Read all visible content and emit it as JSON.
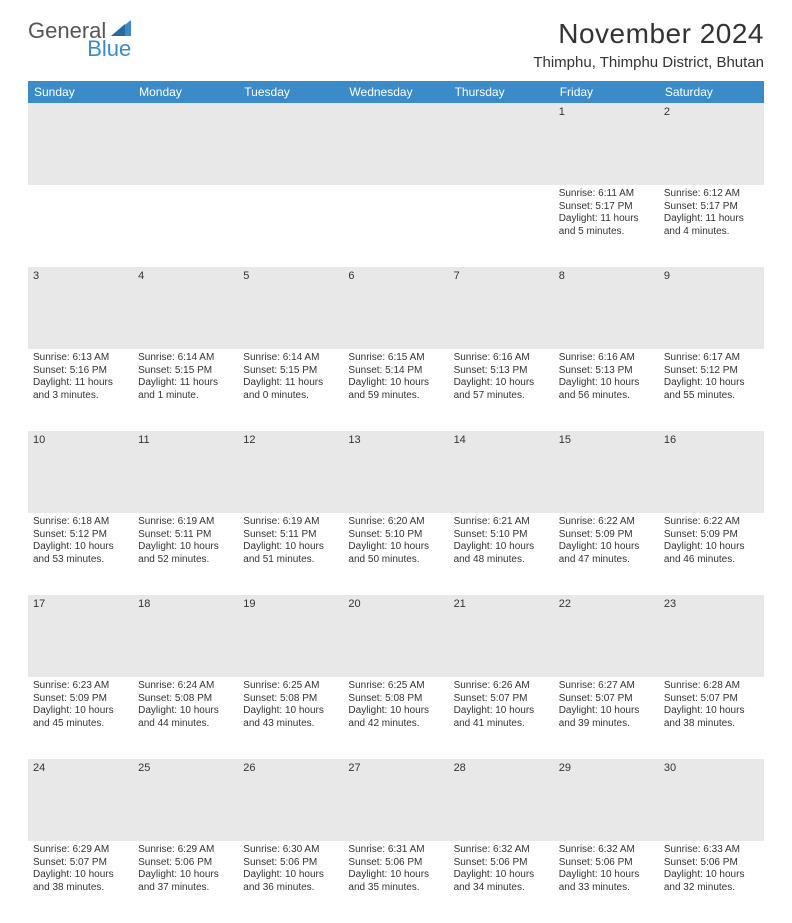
{
  "brand": {
    "part1": "General",
    "part2": "Blue"
  },
  "title": "November 2024",
  "location": "Thimphu, Thimphu District, Bhutan",
  "colors": {
    "header_bg": "#3b8bc8",
    "header_text": "#ffffff",
    "body_bg": "#ffffff",
    "text": "#333333",
    "daynum_bg": "#e8e8e8",
    "rule": "#2f6fa0"
  },
  "fonts": {
    "title_size": 28,
    "location_size": 15,
    "header_size": 12,
    "cell_size": 10,
    "daynum_size": 11
  },
  "columns": [
    "Sunday",
    "Monday",
    "Tuesday",
    "Wednesday",
    "Thursday",
    "Friday",
    "Saturday"
  ],
  "weeks": [
    [
      null,
      null,
      null,
      null,
      null,
      {
        "n": "1",
        "sr": "Sunrise: 6:11 AM",
        "ss": "Sunset: 5:17 PM",
        "d1": "Daylight: 11 hours",
        "d2": "and 5 minutes."
      },
      {
        "n": "2",
        "sr": "Sunrise: 6:12 AM",
        "ss": "Sunset: 5:17 PM",
        "d1": "Daylight: 11 hours",
        "d2": "and 4 minutes."
      }
    ],
    [
      {
        "n": "3",
        "sr": "Sunrise: 6:13 AM",
        "ss": "Sunset: 5:16 PM",
        "d1": "Daylight: 11 hours",
        "d2": "and 3 minutes."
      },
      {
        "n": "4",
        "sr": "Sunrise: 6:14 AM",
        "ss": "Sunset: 5:15 PM",
        "d1": "Daylight: 11 hours",
        "d2": "and 1 minute."
      },
      {
        "n": "5",
        "sr": "Sunrise: 6:14 AM",
        "ss": "Sunset: 5:15 PM",
        "d1": "Daylight: 11 hours",
        "d2": "and 0 minutes."
      },
      {
        "n": "6",
        "sr": "Sunrise: 6:15 AM",
        "ss": "Sunset: 5:14 PM",
        "d1": "Daylight: 10 hours",
        "d2": "and 59 minutes."
      },
      {
        "n": "7",
        "sr": "Sunrise: 6:16 AM",
        "ss": "Sunset: 5:13 PM",
        "d1": "Daylight: 10 hours",
        "d2": "and 57 minutes."
      },
      {
        "n": "8",
        "sr": "Sunrise: 6:16 AM",
        "ss": "Sunset: 5:13 PM",
        "d1": "Daylight: 10 hours",
        "d2": "and 56 minutes."
      },
      {
        "n": "9",
        "sr": "Sunrise: 6:17 AM",
        "ss": "Sunset: 5:12 PM",
        "d1": "Daylight: 10 hours",
        "d2": "and 55 minutes."
      }
    ],
    [
      {
        "n": "10",
        "sr": "Sunrise: 6:18 AM",
        "ss": "Sunset: 5:12 PM",
        "d1": "Daylight: 10 hours",
        "d2": "and 53 minutes."
      },
      {
        "n": "11",
        "sr": "Sunrise: 6:19 AM",
        "ss": "Sunset: 5:11 PM",
        "d1": "Daylight: 10 hours",
        "d2": "and 52 minutes."
      },
      {
        "n": "12",
        "sr": "Sunrise: 6:19 AM",
        "ss": "Sunset: 5:11 PM",
        "d1": "Daylight: 10 hours",
        "d2": "and 51 minutes."
      },
      {
        "n": "13",
        "sr": "Sunrise: 6:20 AM",
        "ss": "Sunset: 5:10 PM",
        "d1": "Daylight: 10 hours",
        "d2": "and 50 minutes."
      },
      {
        "n": "14",
        "sr": "Sunrise: 6:21 AM",
        "ss": "Sunset: 5:10 PM",
        "d1": "Daylight: 10 hours",
        "d2": "and 48 minutes."
      },
      {
        "n": "15",
        "sr": "Sunrise: 6:22 AM",
        "ss": "Sunset: 5:09 PM",
        "d1": "Daylight: 10 hours",
        "d2": "and 47 minutes."
      },
      {
        "n": "16",
        "sr": "Sunrise: 6:22 AM",
        "ss": "Sunset: 5:09 PM",
        "d1": "Daylight: 10 hours",
        "d2": "and 46 minutes."
      }
    ],
    [
      {
        "n": "17",
        "sr": "Sunrise: 6:23 AM",
        "ss": "Sunset: 5:09 PM",
        "d1": "Daylight: 10 hours",
        "d2": "and 45 minutes."
      },
      {
        "n": "18",
        "sr": "Sunrise: 6:24 AM",
        "ss": "Sunset: 5:08 PM",
        "d1": "Daylight: 10 hours",
        "d2": "and 44 minutes."
      },
      {
        "n": "19",
        "sr": "Sunrise: 6:25 AM",
        "ss": "Sunset: 5:08 PM",
        "d1": "Daylight: 10 hours",
        "d2": "and 43 minutes."
      },
      {
        "n": "20",
        "sr": "Sunrise: 6:25 AM",
        "ss": "Sunset: 5:08 PM",
        "d1": "Daylight: 10 hours",
        "d2": "and 42 minutes."
      },
      {
        "n": "21",
        "sr": "Sunrise: 6:26 AM",
        "ss": "Sunset: 5:07 PM",
        "d1": "Daylight: 10 hours",
        "d2": "and 41 minutes."
      },
      {
        "n": "22",
        "sr": "Sunrise: 6:27 AM",
        "ss": "Sunset: 5:07 PM",
        "d1": "Daylight: 10 hours",
        "d2": "and 39 minutes."
      },
      {
        "n": "23",
        "sr": "Sunrise: 6:28 AM",
        "ss": "Sunset: 5:07 PM",
        "d1": "Daylight: 10 hours",
        "d2": "and 38 minutes."
      }
    ],
    [
      {
        "n": "24",
        "sr": "Sunrise: 6:29 AM",
        "ss": "Sunset: 5:07 PM",
        "d1": "Daylight: 10 hours",
        "d2": "and 38 minutes."
      },
      {
        "n": "25",
        "sr": "Sunrise: 6:29 AM",
        "ss": "Sunset: 5:06 PM",
        "d1": "Daylight: 10 hours",
        "d2": "and 37 minutes."
      },
      {
        "n": "26",
        "sr": "Sunrise: 6:30 AM",
        "ss": "Sunset: 5:06 PM",
        "d1": "Daylight: 10 hours",
        "d2": "and 36 minutes."
      },
      {
        "n": "27",
        "sr": "Sunrise: 6:31 AM",
        "ss": "Sunset: 5:06 PM",
        "d1": "Daylight: 10 hours",
        "d2": "and 35 minutes."
      },
      {
        "n": "28",
        "sr": "Sunrise: 6:32 AM",
        "ss": "Sunset: 5:06 PM",
        "d1": "Daylight: 10 hours",
        "d2": "and 34 minutes."
      },
      {
        "n": "29",
        "sr": "Sunrise: 6:32 AM",
        "ss": "Sunset: 5:06 PM",
        "d1": "Daylight: 10 hours",
        "d2": "and 33 minutes."
      },
      {
        "n": "30",
        "sr": "Sunrise: 6:33 AM",
        "ss": "Sunset: 5:06 PM",
        "d1": "Daylight: 10 hours",
        "d2": "and 32 minutes."
      }
    ]
  ]
}
